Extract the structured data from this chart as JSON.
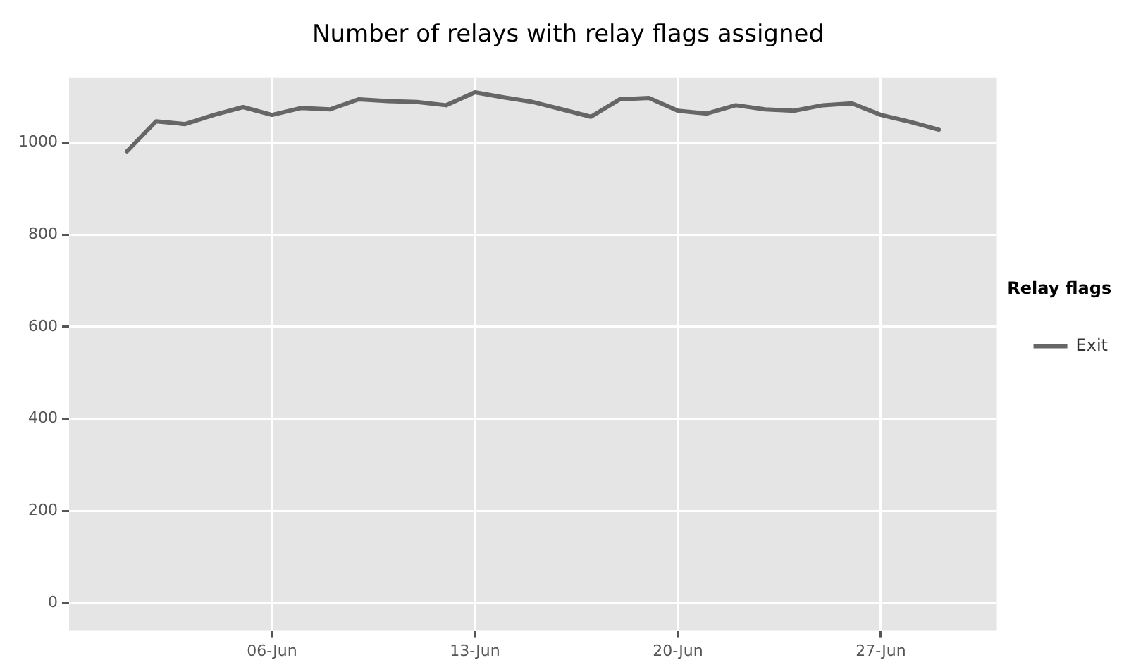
{
  "chart_data": {
    "type": "line",
    "title": "Number of relays with relay flags assigned",
    "legend_title": "Relay flags",
    "legend": "right",
    "grid": true,
    "x": [
      "--06-01",
      "--06-02",
      "--06-03",
      "--06-04",
      "--06-05",
      "--06-06",
      "--06-07",
      "--06-08",
      "--06-09",
      "--06-10",
      "--06-11",
      "--06-12",
      "--06-13",
      "--06-14",
      "--06-15",
      "--06-16",
      "--06-17",
      "--06-18",
      "--06-19",
      "--06-20",
      "--06-21",
      "--06-22",
      "--06-23",
      "--06-24",
      "--06-25",
      "--06-26",
      "--06-27",
      "--06-28",
      "--06-29"
    ],
    "xlim": [
      "--05-30",
      "--07-01"
    ],
    "xticks": [
      {
        "value": "--06-06",
        "label": "06-Jun"
      },
      {
        "value": "--06-13",
        "label": "13-Jun"
      },
      {
        "value": "--06-20",
        "label": "20-Jun"
      },
      {
        "value": "--06-27",
        "label": "27-Jun"
      }
    ],
    "ylim": [
      -60,
      1140
    ],
    "yticks": [
      0,
      200,
      400,
      600,
      800,
      1000
    ],
    "series": [
      {
        "name": "Exit",
        "color": "#666666",
        "values": [
          981,
          1046,
          1040,
          1060,
          1077,
          1060,
          1075,
          1072,
          1094,
          1090,
          1088,
          1081,
          1109,
          1098,
          1088,
          1072,
          1056,
          1094,
          1097,
          1069,
          1063,
          1081,
          1072,
          1069,
          1081,
          1085,
          1060,
          1045,
          1028
        ]
      }
    ]
  }
}
